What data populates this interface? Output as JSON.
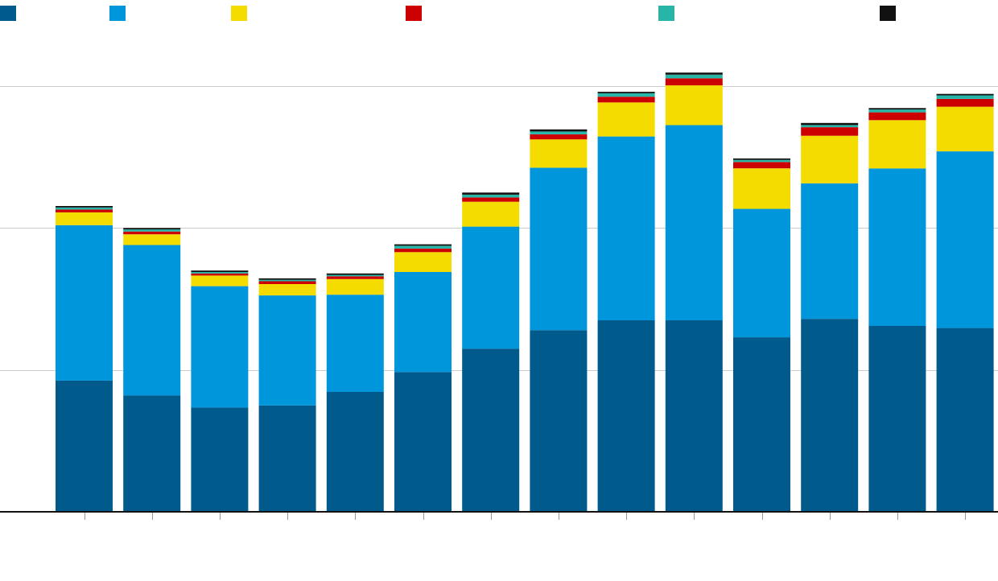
{
  "chart_data": {
    "type": "bar",
    "stacked": true,
    "title": "",
    "xlabel": "",
    "ylabel": "",
    "categories": [
      "",
      "",
      "",
      "",
      "",
      "",
      "",
      "",
      "",
      "",
      "",
      "",
      "",
      ""
    ],
    "ylim": [
      0,
      600
    ],
    "gridlines": [
      200,
      400,
      600
    ],
    "legend_position": "top",
    "series": [
      {
        "color": "#005a8c",
        "values": [
          185,
          164,
          147,
          150,
          169,
          197,
          230,
          256,
          270,
          270,
          246,
          272,
          262,
          259
        ]
      },
      {
        "color": "#0096db",
        "values": [
          219,
          212,
          171,
          155,
          137,
          141,
          172,
          229,
          259,
          275,
          181,
          191,
          222,
          249
        ]
      },
      {
        "color": "#f5dc00",
        "values": [
          18,
          15,
          15,
          16,
          22,
          28,
          35,
          40,
          48,
          56,
          57,
          67,
          68,
          63
        ]
      },
      {
        "color": "#cc0000",
        "values": [
          4,
          4,
          3,
          4,
          4,
          5,
          6,
          7,
          8,
          10,
          9,
          12,
          11,
          11
        ]
      },
      {
        "color": "#26b5a7",
        "values": [
          3,
          3,
          2,
          2,
          2,
          4,
          4,
          4,
          5,
          5,
          3,
          3,
          4,
          5
        ]
      },
      {
        "color": "#111111",
        "values": [
          2,
          2,
          2,
          2,
          2,
          2,
          3,
          3,
          2,
          3,
          2,
          3,
          2,
          2
        ]
      }
    ]
  }
}
